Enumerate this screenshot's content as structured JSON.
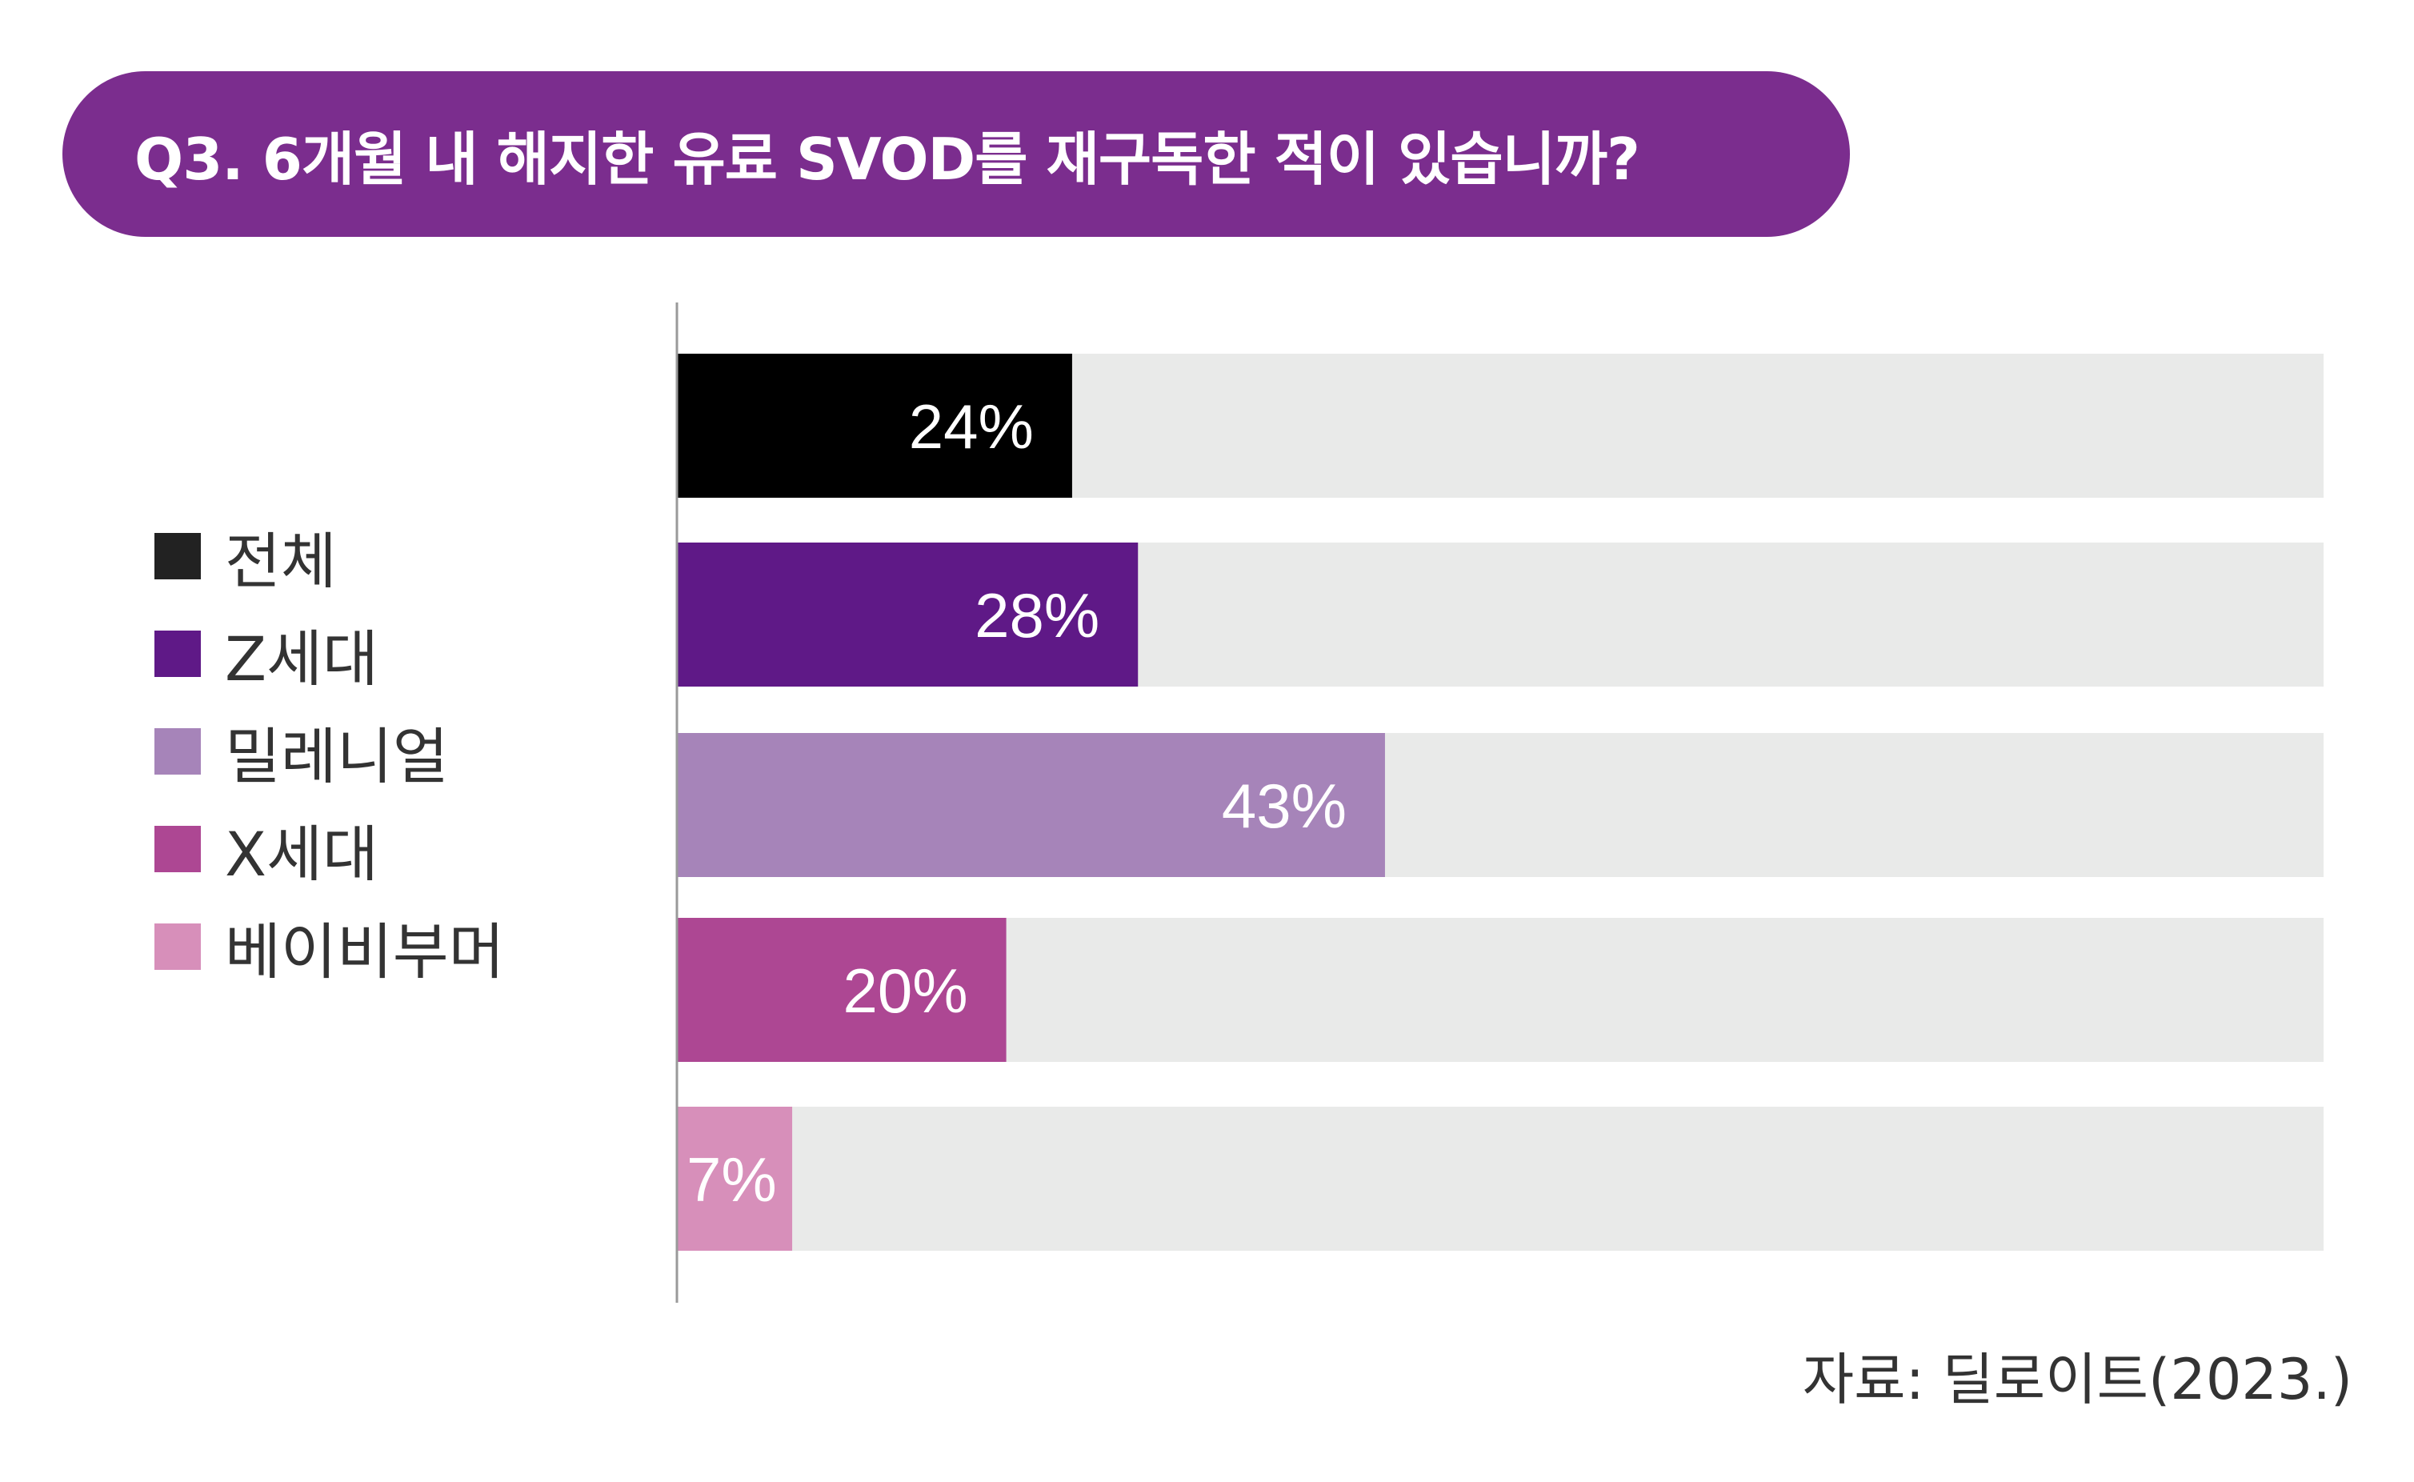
{
  "title": "Q3. 6개월 내 해지한 유료 SVOD를 재구독한 적이 있습니까?",
  "source": "자료: 딜로이트(2023.)",
  "colors": {
    "title_bg": "#7b2d8e",
    "track": "#e9eae9",
    "axis": "#9a9a9a",
    "bar_label": "#ffffff"
  },
  "chart_data": {
    "type": "bar",
    "orientation": "horizontal",
    "categories": [
      "전체",
      "Z세대",
      "밀레니얼",
      "X세대",
      "베이비부머"
    ],
    "values": [
      24,
      28,
      43,
      20,
      7
    ],
    "value_labels": [
      "24%",
      "28%",
      "43%",
      "20%",
      "7%"
    ],
    "bar_colors": [
      "#000000",
      "#5f1987",
      "#a684b9",
      "#ad4793",
      "#d78fba"
    ],
    "legend_colors": [
      "#222222",
      "#5f1987",
      "#a684b9",
      "#ad4793",
      "#d78fba"
    ],
    "xlim": [
      0,
      100
    ],
    "legend_position": "left",
    "grid": false
  }
}
